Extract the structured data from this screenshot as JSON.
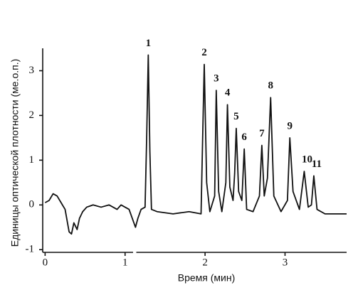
{
  "chart_data": {
    "type": "line",
    "x_label": "Время (мин)",
    "y_label": "Единицы оптической плотности (ме.о.п.)",
    "x": [
      0,
      0.05,
      0.1,
      0.15,
      0.2,
      0.25,
      0.3,
      0.33,
      0.36,
      0.4,
      0.43,
      0.47,
      0.52,
      0.6,
      0.7,
      0.8,
      0.85,
      0.9,
      0.95,
      1.0,
      1.05,
      1.1,
      1.13,
      1.16,
      1.2,
      1.25,
      1.27,
      1.29,
      1.31,
      1.33,
      1.4,
      1.6,
      1.8,
      1.95,
      1.97,
      1.99,
      2.02,
      2.06,
      2.12,
      2.14,
      2.17,
      2.21,
      2.26,
      2.28,
      2.31,
      2.35,
      2.37,
      2.39,
      2.42,
      2.46,
      2.49,
      2.52,
      2.6,
      2.68,
      2.71,
      2.74,
      2.78,
      2.82,
      2.86,
      2.95,
      3.03,
      3.06,
      3.1,
      3.18,
      3.24,
      3.29,
      3.33,
      3.36,
      3.4,
      3.5,
      3.77
    ],
    "series": [
      {
        "color": "#111111",
        "values": [
          0.05,
          0.1,
          0.25,
          0.2,
          0.05,
          -0.1,
          -0.6,
          -0.65,
          -0.4,
          -0.55,
          -0.3,
          -0.15,
          -0.05,
          0,
          -0.05,
          0,
          -0.05,
          -0.1,
          0,
          -0.05,
          -0.1,
          -0.35,
          -0.5,
          -0.3,
          -0.1,
          -0.05,
          1.5,
          3.35,
          1.2,
          -0.1,
          -0.15,
          -0.2,
          -0.15,
          -0.2,
          1.5,
          3.14,
          0.5,
          -0.15,
          0.2,
          2.56,
          0.3,
          -0.15,
          0.5,
          2.24,
          0.4,
          0.1,
          0.7,
          1.71,
          0.3,
          0.1,
          1.25,
          -0.1,
          -0.15,
          0.2,
          1.33,
          0.2,
          0.6,
          2.4,
          0.2,
          -0.15,
          0.1,
          1.5,
          0.3,
          -0.1,
          0.75,
          -0.05,
          0,
          0.65,
          -0.1,
          -0.2,
          -0.2
        ]
      }
    ],
    "peak_labels": [
      "1",
      "2",
      "3",
      "4",
      "5",
      "6",
      "7",
      "8",
      "9",
      "10",
      "11"
    ],
    "xlim": [
      -0.03,
      3.77
    ],
    "ylim": [
      -1.06,
      3.5
    ],
    "xticks": [
      0,
      1,
      2,
      3
    ],
    "yticks": [
      -1,
      0,
      1,
      2,
      3
    ],
    "x_axis_break": [
      1.1,
      1.14
    ]
  }
}
